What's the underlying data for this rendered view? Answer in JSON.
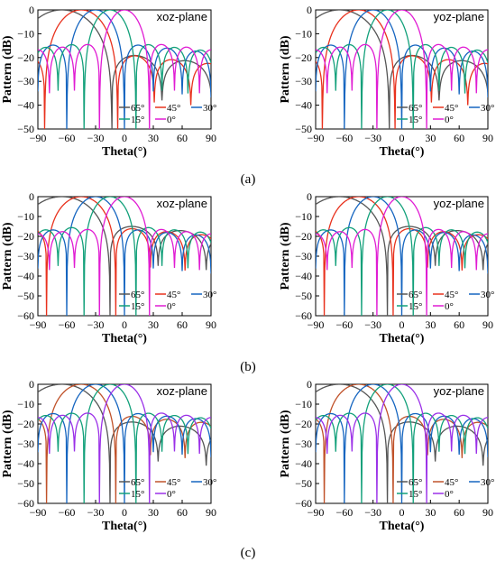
{
  "captions": [
    "(a)",
    "(b)",
    "(c)"
  ],
  "colors": {
    "65": "#555555",
    "45": "#e8321e",
    "30": "#1565c0",
    "15": "#12a07a",
    "0": "#e01cd3"
  },
  "chart_data": [
    {
      "id": "a-xoz",
      "type": "line",
      "panel": "(a)",
      "plane_label": "xoz-plane",
      "xlabel": "Theta(°)",
      "ylabel": "Pattern (dB)",
      "xlim": [
        -90,
        90
      ],
      "ylim": [
        -50,
        0
      ],
      "xticks": [
        -90,
        -60,
        -30,
        0,
        30,
        60,
        90
      ],
      "yticks": [
        0,
        -10,
        -20,
        -30,
        -40,
        -50
      ],
      "legend": [
        "65°",
        "45°",
        "30°",
        "15°",
        "0°"
      ],
      "series": [
        {
          "name": "65°",
          "color": "#555555",
          "steer": -65,
          "bw": 52,
          "sidelobe": -16,
          "floor": -38
        },
        {
          "name": "45°",
          "color": "#e8321e",
          "steer": -45,
          "bw": 38,
          "sidelobe": -17,
          "floor": -40
        },
        {
          "name": "30°",
          "color": "#1565c0",
          "steer": -30,
          "bw": 30,
          "sidelobe": -13,
          "floor": -44
        },
        {
          "name": "15°",
          "color": "#12a07a",
          "steer": -15,
          "bw": 27,
          "sidelobe": -13,
          "floor": -40
        },
        {
          "name": "0°",
          "color": "#e01cd3",
          "steer": 0,
          "bw": 26,
          "sidelobe": -13,
          "floor": -38
        }
      ]
    },
    {
      "id": "a-yoz",
      "type": "line",
      "panel": "(a)",
      "plane_label": "yoz-plane",
      "xlabel": "Theta(°)",
      "ylabel": "Pattern (dB)",
      "xlim": [
        -90,
        90
      ],
      "ylim": [
        -50,
        0
      ],
      "xticks": [
        -90,
        -60,
        -30,
        0,
        30,
        60,
        90
      ],
      "yticks": [
        0,
        -10,
        -20,
        -30,
        -40,
        -50
      ],
      "legend": [
        "65°",
        "45°",
        "30°",
        "15°",
        "0°"
      ],
      "series": [
        {
          "name": "65°",
          "color": "#555555",
          "steer": -65,
          "bw": 52,
          "sidelobe": -16,
          "floor": -38
        },
        {
          "name": "45°",
          "color": "#e8321e",
          "steer": -45,
          "bw": 38,
          "sidelobe": -17,
          "floor": -40
        },
        {
          "name": "30°",
          "color": "#1565c0",
          "steer": -30,
          "bw": 30,
          "sidelobe": -13,
          "floor": -44
        },
        {
          "name": "15°",
          "color": "#12a07a",
          "steer": -15,
          "bw": 27,
          "sidelobe": -13,
          "floor": -40
        },
        {
          "name": "0°",
          "color": "#e01cd3",
          "steer": 0,
          "bw": 26,
          "sidelobe": -13,
          "floor": -38
        }
      ]
    },
    {
      "id": "b-xoz",
      "type": "line",
      "panel": "(b)",
      "plane_label": "xoz-plane",
      "xlabel": "Theta(°)",
      "ylabel": "Pattern (dB)",
      "xlim": [
        -90,
        90
      ],
      "ylim": [
        -60,
        0
      ],
      "xticks": [
        -90,
        -60,
        -30,
        0,
        30,
        60,
        90
      ],
      "yticks": [
        0,
        -10,
        -20,
        -30,
        -40,
        -50,
        -60
      ],
      "legend": [
        "65°",
        "45°",
        "30°",
        "15°",
        "0°"
      ],
      "series": [
        {
          "name": "65°",
          "color": "#555555",
          "steer": -65,
          "bw": 50,
          "sidelobe": -12,
          "floor": -45
        },
        {
          "name": "45°",
          "color": "#e8321e",
          "steer": -45,
          "bw": 36,
          "sidelobe": -14,
          "floor": -50
        },
        {
          "name": "30°",
          "color": "#1565c0",
          "steer": -30,
          "bw": 30,
          "sidelobe": -15,
          "floor": -52
        },
        {
          "name": "15°",
          "color": "#12a07a",
          "steer": -15,
          "bw": 27,
          "sidelobe": -14,
          "floor": -55
        },
        {
          "name": "0°",
          "color": "#e01cd3",
          "steer": 0,
          "bw": 26,
          "sidelobe": -15,
          "floor": -58
        }
      ]
    },
    {
      "id": "b-yoz",
      "type": "line",
      "panel": "(b)",
      "plane_label": "yoz-plane",
      "xlabel": "Theta(°)",
      "ylabel": "Pattern (dB)",
      "xlim": [
        -90,
        90
      ],
      "ylim": [
        -60,
        0
      ],
      "xticks": [
        -90,
        -60,
        -30,
        0,
        30,
        60,
        90
      ],
      "yticks": [
        0,
        -10,
        -20,
        -30,
        -40,
        -50,
        -60
      ],
      "legend": [
        "65°",
        "45°",
        "30°",
        "15°",
        "0°"
      ],
      "series": [
        {
          "name": "65°",
          "color": "#555555",
          "steer": -65,
          "bw": 50,
          "sidelobe": -12,
          "floor": -45
        },
        {
          "name": "45°",
          "color": "#e8321e",
          "steer": -45,
          "bw": 36,
          "sidelobe": -14,
          "floor": -50
        },
        {
          "name": "30°",
          "color": "#1565c0",
          "steer": -30,
          "bw": 30,
          "sidelobe": -15,
          "floor": -52
        },
        {
          "name": "15°",
          "color": "#12a07a",
          "steer": -15,
          "bw": 27,
          "sidelobe": -14,
          "floor": -55
        },
        {
          "name": "0°",
          "color": "#e01cd3",
          "steer": 0,
          "bw": 26,
          "sidelobe": -15,
          "floor": -58
        }
      ]
    },
    {
      "id": "c-xoz",
      "type": "line",
      "panel": "(c)",
      "plane_label": "xoz-plane",
      "xlabel": "Theta(°)",
      "ylabel": "Pattern (dB)",
      "xlim": [
        -90,
        90
      ],
      "ylim": [
        -60,
        0
      ],
      "xticks": [
        -90,
        -60,
        -30,
        0,
        30,
        60,
        90
      ],
      "yticks": [
        0,
        -10,
        -20,
        -30,
        -40,
        -50,
        -60
      ],
      "legend": [
        "65°",
        "45°",
        "30°",
        "15°",
        "0°"
      ],
      "series": [
        {
          "name": "65°",
          "color": "#555555",
          "steer": -65,
          "bw": 50,
          "sidelobe": -16,
          "floor": -45
        },
        {
          "name": "45°",
          "color": "#c0522a",
          "steer": -45,
          "bw": 36,
          "sidelobe": -14,
          "floor": -50
        },
        {
          "name": "30°",
          "color": "#1565c0",
          "steer": -30,
          "bw": 30,
          "sidelobe": -13,
          "floor": -48
        },
        {
          "name": "15°",
          "color": "#12a07a",
          "steer": -15,
          "bw": 27,
          "sidelobe": -13,
          "floor": -42
        },
        {
          "name": "0°",
          "color": "#9b30e8",
          "steer": 0,
          "bw": 26,
          "sidelobe": -13,
          "floor": -42
        }
      ]
    },
    {
      "id": "c-yoz",
      "type": "line",
      "panel": "(c)",
      "plane_label": "yoz-plane",
      "xlabel": "Theta(°)",
      "ylabel": "Pattern (dB)",
      "xlim": [
        -90,
        90
      ],
      "ylim": [
        -60,
        0
      ],
      "xticks": [
        -90,
        -60,
        -30,
        0,
        30,
        60,
        90
      ],
      "yticks": [
        0,
        -10,
        -20,
        -30,
        -40,
        -50,
        -60
      ],
      "legend": [
        "65°",
        "45°",
        "30°",
        "15°",
        "0°"
      ],
      "series": [
        {
          "name": "65°",
          "color": "#555555",
          "steer": -65,
          "bw": 50,
          "sidelobe": -16,
          "floor": -45
        },
        {
          "name": "45°",
          "color": "#c0522a",
          "steer": -45,
          "bw": 36,
          "sidelobe": -14,
          "floor": -50
        },
        {
          "name": "30°",
          "color": "#1565c0",
          "steer": -30,
          "bw": 30,
          "sidelobe": -13,
          "floor": -48
        },
        {
          "name": "15°",
          "color": "#12a07a",
          "steer": -15,
          "bw": 27,
          "sidelobe": -13,
          "floor": -42
        },
        {
          "name": "0°",
          "color": "#9b30e8",
          "steer": 0,
          "bw": 26,
          "sidelobe": -13,
          "floor": -42
        }
      ]
    }
  ]
}
